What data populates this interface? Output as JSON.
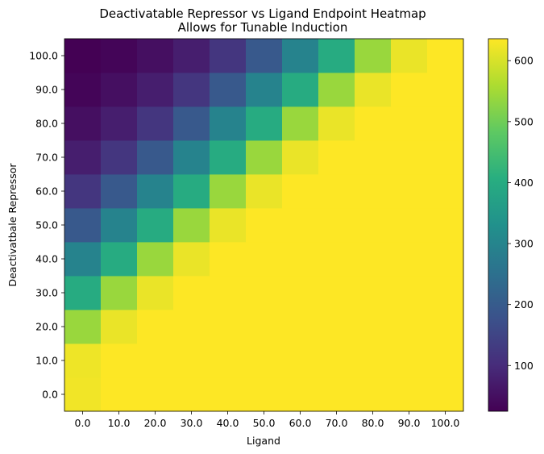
{
  "chart_data": {
    "type": "heatmap",
    "title": "Deactivatable Repressor vs Ligand Endpoint Heatmap",
    "subtitle": "Allows for Tunable Induction",
    "xlabel": "Ligand",
    "ylabel": "Deactivatbale Repressor",
    "x_categories": [
      "0.0",
      "10.0",
      "20.0",
      "30.0",
      "40.0",
      "50.0",
      "60.0",
      "70.0",
      "80.0",
      "90.0",
      "100.0"
    ],
    "y_categories": [
      "0.0",
      "10.0",
      "20.0",
      "30.0",
      "40.0",
      "50.0",
      "60.0",
      "70.0",
      "80.0",
      "90.0",
      "100.0"
    ],
    "values": [
      [
        625,
        636,
        636,
        636,
        636,
        636,
        636,
        636,
        636,
        636,
        636
      ],
      [
        622,
        636,
        636,
        636,
        636,
        636,
        636,
        636,
        636,
        636,
        636
      ],
      [
        540,
        618,
        636,
        636,
        636,
        636,
        636,
        636,
        636,
        636,
        636
      ],
      [
        400,
        540,
        618,
        636,
        636,
        636,
        636,
        636,
        636,
        636,
        636
      ],
      [
        295,
        400,
        540,
        618,
        636,
        636,
        636,
        636,
        636,
        636,
        636
      ],
      [
        195,
        295,
        400,
        540,
        618,
        636,
        636,
        636,
        636,
        636,
        636
      ],
      [
        120,
        195,
        295,
        400,
        540,
        618,
        636,
        636,
        636,
        636,
        636
      ],
      [
        75,
        120,
        195,
        295,
        400,
        540,
        618,
        636,
        636,
        636,
        636
      ],
      [
        50,
        75,
        120,
        195,
        295,
        400,
        540,
        618,
        636,
        636,
        636
      ],
      [
        32,
        50,
        75,
        120,
        195,
        295,
        400,
        540,
        618,
        636,
        636
      ],
      [
        25,
        32,
        50,
        75,
        120,
        195,
        295,
        400,
        540,
        618,
        636
      ]
    ],
    "color_range": [
      25,
      636
    ],
    "colormap": "viridis",
    "colorbar_ticks": [
      100,
      200,
      300,
      400,
      500,
      600
    ],
    "colorbar_tick_labels": [
      "100",
      "200",
      "300",
      "400",
      "500",
      "600"
    ],
    "grid": false
  }
}
